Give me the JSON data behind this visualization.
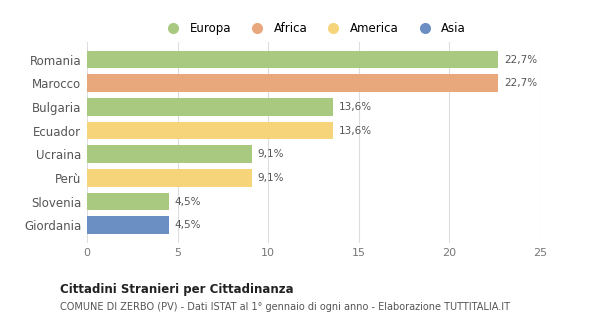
{
  "categories": [
    "Romania",
    "Marocco",
    "Bulgaria",
    "Ecuador",
    "Ucraina",
    "Perù",
    "Slovenia",
    "Giordania"
  ],
  "values": [
    22.7,
    22.7,
    13.6,
    13.6,
    9.1,
    9.1,
    4.5,
    4.5
  ],
  "labels": [
    "22,7%",
    "22,7%",
    "13,6%",
    "13,6%",
    "9,1%",
    "9,1%",
    "4,5%",
    "4,5%"
  ],
  "colors": [
    "#a8c97f",
    "#e8a87c",
    "#a8c97f",
    "#f5d47a",
    "#a8c97f",
    "#f5d47a",
    "#a8c97f",
    "#6b8fc2"
  ],
  "legend_labels": [
    "Europa",
    "Africa",
    "America",
    "Asia"
  ],
  "legend_colors": [
    "#a8c97f",
    "#e8a87c",
    "#f5d47a",
    "#6b8fc2"
  ],
  "xlim": [
    0,
    25
  ],
  "xticks": [
    0,
    5,
    10,
    15,
    20,
    25
  ],
  "title_bold": "Cittadini Stranieri per Cittadinanza",
  "subtitle": "COMUNE DI ZERBO (PV) - Dati ISTAT al 1° gennaio di ogni anno - Elaborazione TUTTITALIA.IT",
  "background_color": "#ffffff",
  "bar_alpha": 1.0,
  "bar_height": 0.75
}
